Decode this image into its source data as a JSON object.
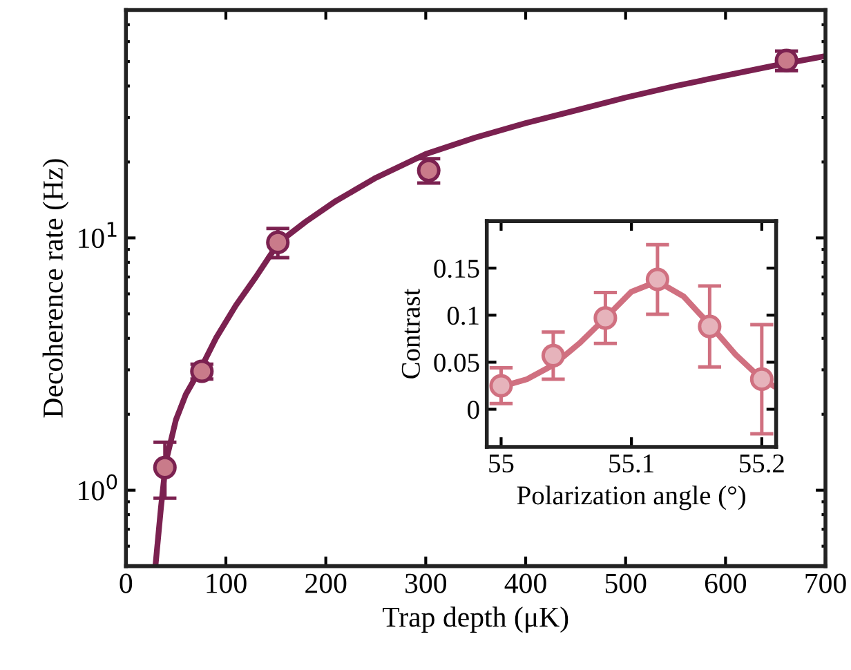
{
  "chart_data": [
    {
      "type": "scatter",
      "xlabel": "Trap depth (μK)",
      "ylabel": "Decoherence rate (Hz)",
      "log": "y",
      "xlim": [
        0,
        700
      ],
      "xticks": [
        0,
        100,
        200,
        300,
        400,
        500,
        600,
        700
      ],
      "ylim": [
        0.5,
        80
      ],
      "yticks": [
        {
          "value": 1,
          "label": "10$^{0}$"
        },
        {
          "value": 10,
          "label": "10$^{1}$"
        }
      ],
      "grid": false,
      "series": [
        {
          "type": "line",
          "color": "#7b2150",
          "x": [
            29.5,
            35,
            40,
            50,
            60,
            76,
            90,
            110,
            130,
            153,
            180,
            210,
            250,
            300,
            350,
            400,
            450,
            500,
            550,
            600,
            650,
            700
          ],
          "values": [
            0.5,
            0.85,
            1.3,
            1.9,
            2.4,
            3.1,
            4.0,
            5.4,
            7.0,
            9.6,
            11.6,
            14.0,
            17.3,
            21.5,
            25.0,
            28.5,
            32.0,
            36.0,
            40.0,
            44.0,
            48.3,
            52.6
          ]
        },
        {
          "marker": "circle",
          "color": "#c97b8a",
          "x": [
            39,
            76,
            152,
            303,
            661
          ],
          "values": [
            1.23,
            2.96,
            9.6,
            18.5,
            50.5
          ],
          "errors": [
            [
              0.93,
              1.55
            ],
            [
              2.76,
              3.16
            ],
            [
              8.35,
              10.9
            ],
            [
              16.5,
              20.6
            ],
            [
              46,
              55
            ]
          ]
        }
      ]
    },
    {
      "type": "scatter",
      "xlabel": "Polarization angle (°)",
      "ylabel": "Contrast",
      "xlim": [
        54.989,
        55.211
      ],
      "xticks": [
        55,
        55.1,
        55.2
      ],
      "ylim": [
        -0.04,
        0.2
      ],
      "yticks": [
        0,
        0.05,
        0.1,
        0.15
      ],
      "grid": false,
      "series": [
        {
          "type": "line",
          "color": "#d07080",
          "x": [
            55,
            55.02,
            55.04,
            55.06,
            55.08,
            55.1,
            55.12,
            55.14,
            55.16,
            55.18,
            55.2,
            55.21
          ],
          "values": [
            0.024,
            0.032,
            0.047,
            0.07,
            0.097,
            0.125,
            0.136,
            0.12,
            0.09,
            0.058,
            0.032,
            0.024
          ]
        },
        {
          "marker": "circle",
          "color": "#e6b3bb",
          "x": [
            55,
            55.04,
            55.08,
            55.12,
            55.16,
            55.2
          ],
          "values": [
            0.025,
            0.057,
            0.097,
            0.138,
            0.088,
            0.032
          ],
          "errors": [
            0.019,
            0.025,
            0.027,
            0.037,
            0.043,
            0.058
          ]
        }
      ]
    }
  ]
}
